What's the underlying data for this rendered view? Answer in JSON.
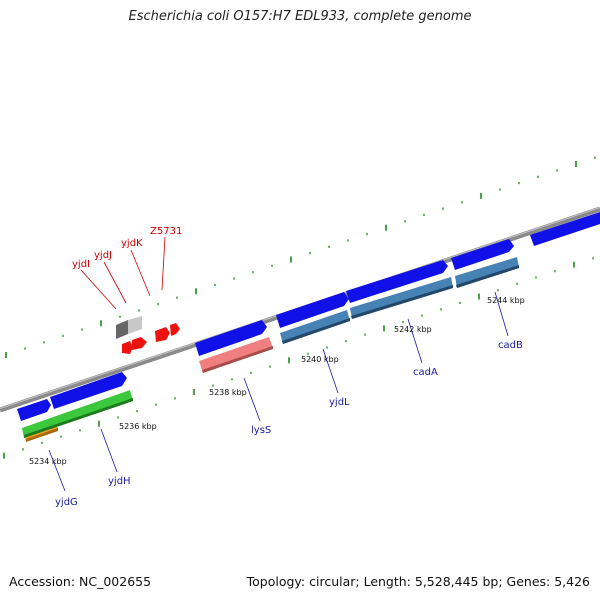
{
  "title": "Escherichia coli O157:H7 EDL933, complete genome",
  "footer": {
    "accession": "Accession: NC_002655",
    "topology": "Topology: circular; Length: 5,528,445 bp; Genes: 5,426"
  },
  "colors": {
    "backbone": "#888888",
    "tick": "#1e8a1e",
    "gene_forward": "#1010e8",
    "gene_cds_blue": "#4682b4",
    "gene_cds_green": "#3cc83c",
    "gene_cds_pink": "#f08080",
    "gene_cds_orange": "#f0a020",
    "gene_other_red": "#ee1111",
    "gene_other_gray": "#9a9a9a",
    "label_red": "#cc0000",
    "label_blue": "#1a1aa0"
  },
  "kbp_labels": [
    "5234 kbp",
    "5236 kbp",
    "5238 kbp",
    "5240 kbp",
    "5242 kbp",
    "5244 kbp"
  ],
  "gene_labels_red": [
    "yjdI",
    "yjdJ",
    "yjdK",
    "Z5731"
  ],
  "gene_labels_blue": [
    "yjdG",
    "yjdH",
    "lysS",
    "yjdL",
    "cadA",
    "cadB"
  ]
}
